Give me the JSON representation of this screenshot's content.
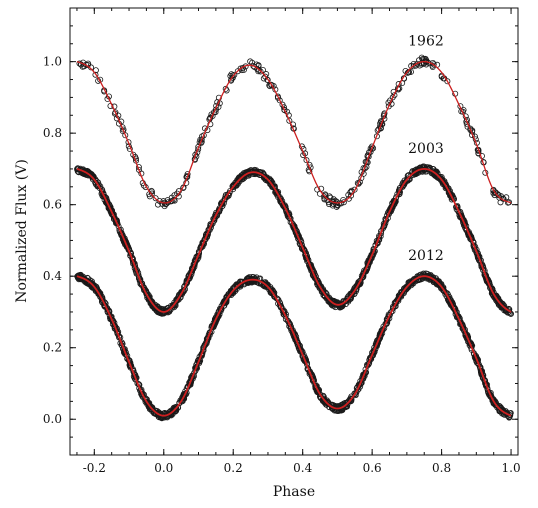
{
  "chart_data": {
    "type": "scatter",
    "title": "",
    "xlabel": "Phase",
    "ylabel": "Normalized Flux (V)",
    "xlim": [
      -0.27,
      1.02
    ],
    "ylim": [
      -0.1,
      1.15
    ],
    "x_major_ticks": [
      -0.2,
      0.0,
      0.2,
      0.4,
      0.6,
      0.8,
      1.0
    ],
    "x_tick_labels": [
      "-0.2",
      "0.0",
      "0.2",
      "0.4",
      "0.6",
      "0.8",
      "1.0"
    ],
    "y_major_ticks": [
      0.0,
      0.2,
      0.4,
      0.6,
      0.8,
      1.0
    ],
    "y_tick_labels": [
      "0.0",
      "0.2",
      "0.4",
      "0.6",
      "0.8",
      "1.0"
    ],
    "grid": false,
    "legend": "none",
    "colors": {
      "observed": "#1a1a1a",
      "model": "#cc1f1f"
    },
    "series": [
      {
        "name": "1962",
        "label_position": "above second maximum",
        "phase": [
          -0.25,
          -0.2,
          -0.15,
          -0.1,
          -0.05,
          0.0,
          0.05,
          0.1,
          0.15,
          0.2,
          0.25,
          0.3,
          0.35,
          0.4,
          0.45,
          0.5,
          0.55,
          0.6,
          0.65,
          0.7,
          0.75,
          0.8,
          0.85,
          0.9,
          0.95,
          1.0
        ],
        "flux_model": [
          1.0,
          0.97,
          0.88,
          0.77,
          0.65,
          0.605,
          0.64,
          0.76,
          0.87,
          0.96,
          0.99,
          0.95,
          0.86,
          0.75,
          0.64,
          0.605,
          0.64,
          0.76,
          0.88,
          0.97,
          1.0,
          0.97,
          0.88,
          0.77,
          0.64,
          0.605
        ]
      },
      {
        "name": "2003",
        "label_position": "above second maximum",
        "phase": [
          -0.25,
          -0.2,
          -0.15,
          -0.1,
          -0.05,
          0.0,
          0.05,
          0.1,
          0.15,
          0.2,
          0.25,
          0.3,
          0.35,
          0.4,
          0.45,
          0.5,
          0.55,
          0.6,
          0.65,
          0.7,
          0.75,
          0.8,
          0.85,
          0.9,
          0.95,
          1.0
        ],
        "flux_model": [
          0.7,
          0.67,
          0.58,
          0.47,
          0.35,
          0.3,
          0.35,
          0.46,
          0.57,
          0.65,
          0.69,
          0.67,
          0.59,
          0.48,
          0.37,
          0.32,
          0.36,
          0.46,
          0.58,
          0.67,
          0.7,
          0.67,
          0.58,
          0.47,
          0.35,
          0.3
        ]
      },
      {
        "name": "2012",
        "label_position": "above second maximum",
        "phase": [
          -0.25,
          -0.2,
          -0.15,
          -0.1,
          -0.05,
          0.0,
          0.05,
          0.1,
          0.15,
          0.2,
          0.25,
          0.3,
          0.35,
          0.4,
          0.45,
          0.5,
          0.55,
          0.6,
          0.65,
          0.7,
          0.75,
          0.8,
          0.85,
          0.9,
          0.95,
          1.0
        ],
        "flux_model": [
          0.4,
          0.37,
          0.28,
          0.16,
          0.05,
          0.01,
          0.05,
          0.16,
          0.28,
          0.36,
          0.39,
          0.37,
          0.29,
          0.18,
          0.07,
          0.03,
          0.07,
          0.18,
          0.29,
          0.37,
          0.4,
          0.37,
          0.28,
          0.17,
          0.05,
          0.01
        ]
      }
    ]
  }
}
